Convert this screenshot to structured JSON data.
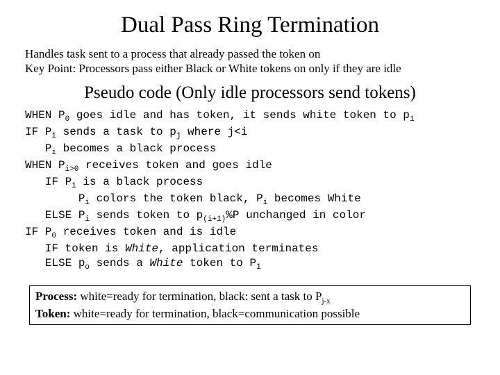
{
  "title": "Dual Pass Ring Termination",
  "intro_line1": "Handles task sent to a process that already passed the token on",
  "intro_line2": "Key Point: Processors pass either Black or White tokens on only if they are idle",
  "subtitle": "Pseudo code (Only idle processors send tokens)",
  "code": {
    "l1a": "WHEN P",
    "l1s": "0",
    "l1b": " goes idle and has token, it sends white token to p",
    "l1s2": "1",
    "l2a": "IF P",
    "l2s": "i",
    "l2b": " sends a task to p",
    "l2s2": "j",
    "l2c": " where j<i",
    "l3a": "   P",
    "l3s": "i",
    "l3b": " becomes a black process",
    "l4a": "WHEN P",
    "l4s": "i>0",
    "l4b": " receives token and goes idle",
    "l5a": "   IF P",
    "l5s": "i",
    "l5b": " is a black process",
    "l6a": "        P",
    "l6s": "i",
    "l6b": " colors the token black, P",
    "l6s2": "i",
    "l6c": " becomes White",
    "l7a": "   ELSE P",
    "l7s": "i",
    "l7b": " sends token to p",
    "l7s2": "(i+1)",
    "l7c": "%P unchanged in color",
    "l8a": "IF P",
    "l8s": "0",
    "l8b": " receives token and is idle",
    "l9": "   IF token is ",
    "l9i": "White",
    "l9b": ", application terminates",
    "l10a": "   ELSE p",
    "l10s": "o",
    "l10b": " sends a ",
    "l10i": "White",
    "l10c": " token to P",
    "l10s2": "1"
  },
  "box": {
    "line1a": "Process:",
    "line1b": " white=ready for termination, black: sent a task to P",
    "line1s": "j-x",
    "line2a": "Token:",
    "line2b": " white=ready for termination, black=communication possible"
  }
}
